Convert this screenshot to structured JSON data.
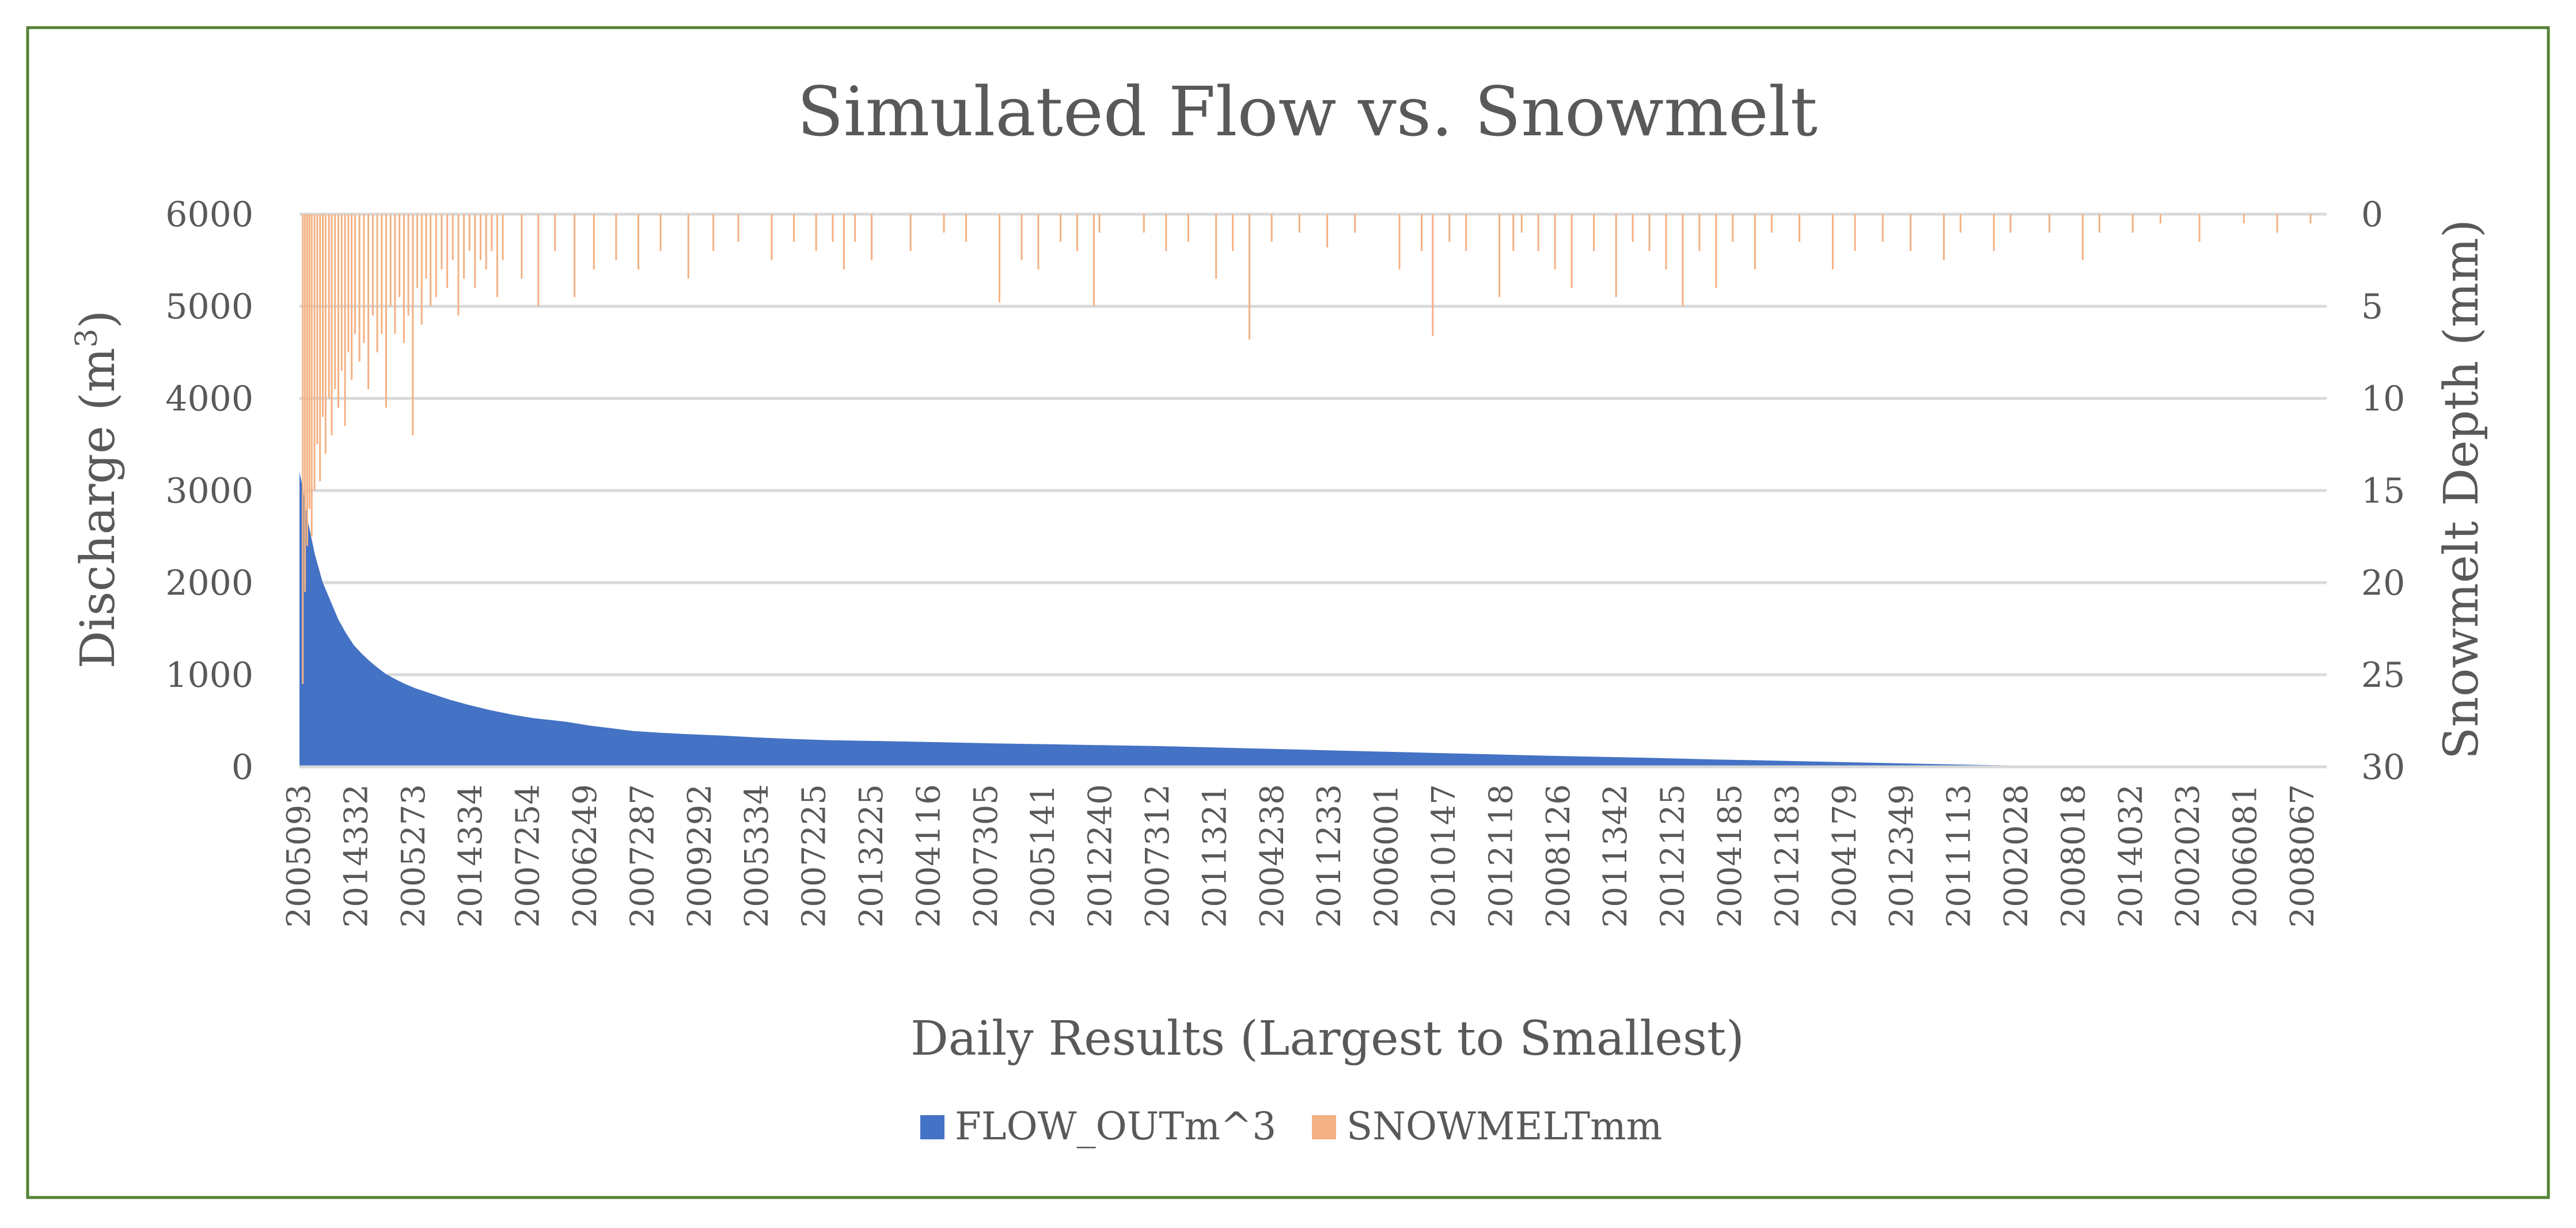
{
  "chart_data": {
    "type": "area",
    "title": "Simulated Flow vs. Snowmelt",
    "xlabel": "Daily Results (Largest to Smallest)",
    "ylabel": "Discharge (m",
    "ylabel_sup": "3",
    "ylabel_end": ")",
    "y2label": "Snowmelt Depth (mm)",
    "ylim": [
      0,
      6000
    ],
    "y2lim": [
      0,
      30
    ],
    "y2_reversed": true,
    "yticks": [
      "0",
      "1000",
      "2000",
      "3000",
      "4000",
      "5000",
      "6000"
    ],
    "y2ticks": [
      "0",
      "5",
      "10",
      "15",
      "20",
      "25",
      "30"
    ],
    "x_tick_labels": [
      "2005093",
      "2014332",
      "2005273",
      "2014334",
      "2007254",
      "2006249",
      "2007287",
      "2009292",
      "2005334",
      "2007225",
      "2013225",
      "2004116",
      "2007305",
      "2005141",
      "2012240",
      "2007312",
      "2011321",
      "2004238",
      "2011233",
      "2006001",
      "2010147",
      "2012118",
      "2008126",
      "2011342",
      "2012125",
      "2004185",
      "2012183",
      "2004179",
      "2012349",
      "2011113",
      "2002028",
      "2008018",
      "2014032",
      "2002023",
      "2006081",
      "2008067"
    ],
    "x_count": 3650,
    "legend": "bottom-center",
    "colors": {
      "flow": "#4472c4",
      "snowmelt": "#f4b183",
      "grid": "#d9d9d9",
      "border": "#548235"
    },
    "series": [
      {
        "name": "FLOW_OUTm^3",
        "axis": "left",
        "kind": "area",
        "profile_index": [
          0,
          7,
          14,
          28,
          42,
          56,
          70,
          84,
          98,
          112,
          126,
          140,
          155,
          170,
          190,
          210,
          240,
          270,
          300,
          340,
          380,
          420,
          480,
          520,
          560,
          600,
          650,
          700,
          760,
          820,
          880,
          950,
          1050,
          1150,
          1250,
          1350,
          1450,
          1550,
          1650,
          1750,
          1850,
          1950,
          2050,
          2150,
          2250,
          2350,
          2450,
          2550,
          2650,
          2750,
          2850,
          2950,
          3050,
          3150,
          3250,
          3350,
          3450,
          3550,
          3649
        ],
        "profile_value": [
          3200,
          3000,
          2700,
          2300,
          2000,
          1800,
          1600,
          1450,
          1320,
          1230,
          1150,
          1080,
          1010,
          960,
          900,
          850,
          790,
          730,
          680,
          620,
          570,
          530,
          490,
          450,
          420,
          390,
          370,
          355,
          340,
          320,
          305,
          290,
          280,
          268,
          255,
          245,
          235,
          225,
          210,
          195,
          180,
          165,
          150,
          135,
          120,
          108,
          95,
          80,
          68,
          55,
          42,
          30,
          18,
          10,
          5,
          3,
          2,
          1,
          0
        ]
      },
      {
        "name": "SNOWMELTmm",
        "axis": "right",
        "kind": "spikes",
        "spikes": [
          [
            6,
            25.5
          ],
          [
            10,
            20.5
          ],
          [
            14,
            18
          ],
          [
            18,
            16
          ],
          [
            22,
            17.5
          ],
          [
            27,
            15
          ],
          [
            32,
            12.5
          ],
          [
            37,
            14.5
          ],
          [
            42,
            11
          ],
          [
            47,
            13
          ],
          [
            53,
            10
          ],
          [
            58,
            12
          ],
          [
            64,
            9.5
          ],
          [
            70,
            10.5
          ],
          [
            76,
            8.5
          ],
          [
            82,
            11.5
          ],
          [
            88,
            7.5
          ],
          [
            94,
            9
          ],
          [
            100,
            6.5
          ],
          [
            108,
            8
          ],
          [
            116,
            7
          ],
          [
            124,
            9.5
          ],
          [
            132,
            5.5
          ],
          [
            140,
            7.5
          ],
          [
            148,
            6.5
          ],
          [
            156,
            10.5
          ],
          [
            164,
            5
          ],
          [
            172,
            6.5
          ],
          [
            180,
            4.5
          ],
          [
            188,
            7
          ],
          [
            196,
            5.5
          ],
          [
            204,
            12
          ],
          [
            212,
            4
          ],
          [
            220,
            6
          ],
          [
            228,
            3.5
          ],
          [
            236,
            5
          ],
          [
            246,
            4.5
          ],
          [
            256,
            3
          ],
          [
            266,
            4
          ],
          [
            276,
            2.5
          ],
          [
            286,
            5.5
          ],
          [
            296,
            3.5
          ],
          [
            306,
            2
          ],
          [
            316,
            4
          ],
          [
            326,
            2.5
          ],
          [
            336,
            3
          ],
          [
            346,
            2
          ],
          [
            356,
            4.5
          ],
          [
            366,
            2.5
          ],
          [
            400,
            3.5
          ],
          [
            430,
            5
          ],
          [
            460,
            2
          ],
          [
            495,
            4.5
          ],
          [
            530,
            3
          ],
          [
            570,
            2.5
          ],
          [
            610,
            3
          ],
          [
            650,
            2
          ],
          [
            700,
            3.5
          ],
          [
            745,
            2
          ],
          [
            790,
            1.5
          ],
          [
            850,
            2.5
          ],
          [
            890,
            1.5
          ],
          [
            930,
            2
          ],
          [
            960,
            1.5
          ],
          [
            980,
            3
          ],
          [
            1000,
            1.5
          ],
          [
            1030,
            2.5
          ],
          [
            1100,
            2
          ],
          [
            1160,
            1
          ],
          [
            1200,
            1.5
          ],
          [
            1260,
            4.8
          ],
          [
            1300,
            2.5
          ],
          [
            1330,
            3
          ],
          [
            1370,
            1.5
          ],
          [
            1400,
            2
          ],
          [
            1430,
            5
          ],
          [
            1440,
            1
          ],
          [
            1520,
            1
          ],
          [
            1560,
            2
          ],
          [
            1600,
            1.5
          ],
          [
            1650,
            3.5
          ],
          [
            1680,
            2
          ],
          [
            1710,
            6.8
          ],
          [
            1750,
            1.5
          ],
          [
            1800,
            1
          ],
          [
            1850,
            1.8
          ],
          [
            1900,
            1
          ],
          [
            1980,
            3
          ],
          [
            2020,
            2
          ],
          [
            2040,
            6.6
          ],
          [
            2070,
            1.5
          ],
          [
            2100,
            2
          ],
          [
            2160,
            4.5
          ],
          [
            2185,
            2
          ],
          [
            2200,
            1
          ],
          [
            2230,
            2
          ],
          [
            2260,
            3
          ],
          [
            2290,
            4
          ],
          [
            2330,
            2
          ],
          [
            2370,
            4.5
          ],
          [
            2400,
            1.5
          ],
          [
            2430,
            2
          ],
          [
            2460,
            3
          ],
          [
            2490,
            5
          ],
          [
            2520,
            2
          ],
          [
            2550,
            4
          ],
          [
            2580,
            1.5
          ],
          [
            2620,
            3
          ],
          [
            2650,
            1
          ],
          [
            2700,
            1.5
          ],
          [
            2760,
            3
          ],
          [
            2800,
            2
          ],
          [
            2850,
            1.5
          ],
          [
            2900,
            2
          ],
          [
            2960,
            2.5
          ],
          [
            2990,
            1
          ],
          [
            3050,
            2
          ],
          [
            3080,
            1
          ],
          [
            3150,
            1
          ],
          [
            3210,
            2.5
          ],
          [
            3240,
            1
          ],
          [
            3300,
            1
          ],
          [
            3350,
            0.5
          ],
          [
            3420,
            1.5
          ],
          [
            3500,
            0.5
          ],
          [
            3560,
            1
          ],
          [
            3620,
            0.5
          ]
        ]
      }
    ]
  }
}
